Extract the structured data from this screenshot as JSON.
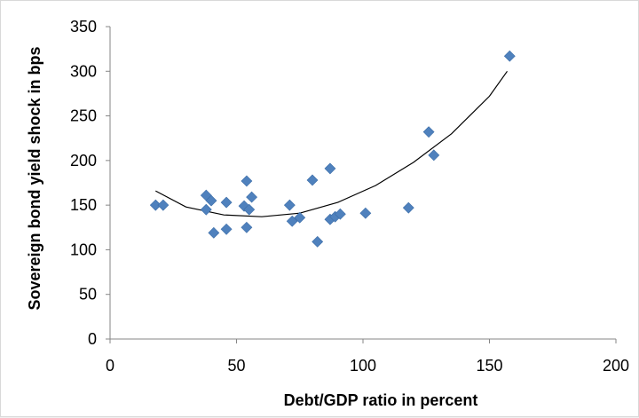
{
  "chart_data": {
    "type": "scatter",
    "title": "",
    "xlabel": "Debt/GDP ratio in percent",
    "ylabel": "Sovereign bond yield shock in bps",
    "xlim": [
      0,
      200
    ],
    "ylim": [
      0,
      350
    ],
    "xticks": [
      0,
      50,
      100,
      150,
      200
    ],
    "yticks": [
      0,
      50,
      100,
      150,
      200,
      250,
      300,
      350
    ],
    "xtick_labels": [
      "0",
      "50",
      "100",
      "150",
      "200"
    ],
    "ytick_labels": [
      "0",
      "50",
      "100",
      "150",
      "200",
      "250",
      "300",
      "350"
    ],
    "grid": false,
    "legend": "none",
    "marker": "diamond",
    "marker_color": "#4f81bd",
    "trendline": {
      "type": "polynomial",
      "order": 2,
      "color": "#000000",
      "x_range": [
        18,
        157
      ],
      "points": [
        {
          "x": 18,
          "y": 166
        },
        {
          "x": 30,
          "y": 148
        },
        {
          "x": 45,
          "y": 139
        },
        {
          "x": 60,
          "y": 137
        },
        {
          "x": 75,
          "y": 141
        },
        {
          "x": 90,
          "y": 153
        },
        {
          "x": 105,
          "y": 172
        },
        {
          "x": 120,
          "y": 198
        },
        {
          "x": 135,
          "y": 230
        },
        {
          "x": 150,
          "y": 272
        },
        {
          "x": 157,
          "y": 300
        }
      ]
    },
    "series": [
      {
        "points": [
          {
            "x": 18,
            "y": 150
          },
          {
            "x": 21,
            "y": 150
          },
          {
            "x": 38,
            "y": 161
          },
          {
            "x": 38,
            "y": 145
          },
          {
            "x": 40,
            "y": 155
          },
          {
            "x": 41,
            "y": 119
          },
          {
            "x": 46,
            "y": 153
          },
          {
            "x": 46,
            "y": 123
          },
          {
            "x": 53,
            "y": 149
          },
          {
            "x": 54,
            "y": 177
          },
          {
            "x": 54,
            "y": 125
          },
          {
            "x": 55,
            "y": 145
          },
          {
            "x": 56,
            "y": 159
          },
          {
            "x": 71,
            "y": 150
          },
          {
            "x": 72,
            "y": 132
          },
          {
            "x": 75,
            "y": 136
          },
          {
            "x": 80,
            "y": 178
          },
          {
            "x": 82,
            "y": 109
          },
          {
            "x": 87,
            "y": 191
          },
          {
            "x": 87,
            "y": 134
          },
          {
            "x": 89,
            "y": 137
          },
          {
            "x": 91,
            "y": 140
          },
          {
            "x": 101,
            "y": 141
          },
          {
            "x": 118,
            "y": 147
          },
          {
            "x": 126,
            "y": 232
          },
          {
            "x": 128,
            "y": 206
          },
          {
            "x": 158,
            "y": 317
          }
        ]
      }
    ]
  }
}
